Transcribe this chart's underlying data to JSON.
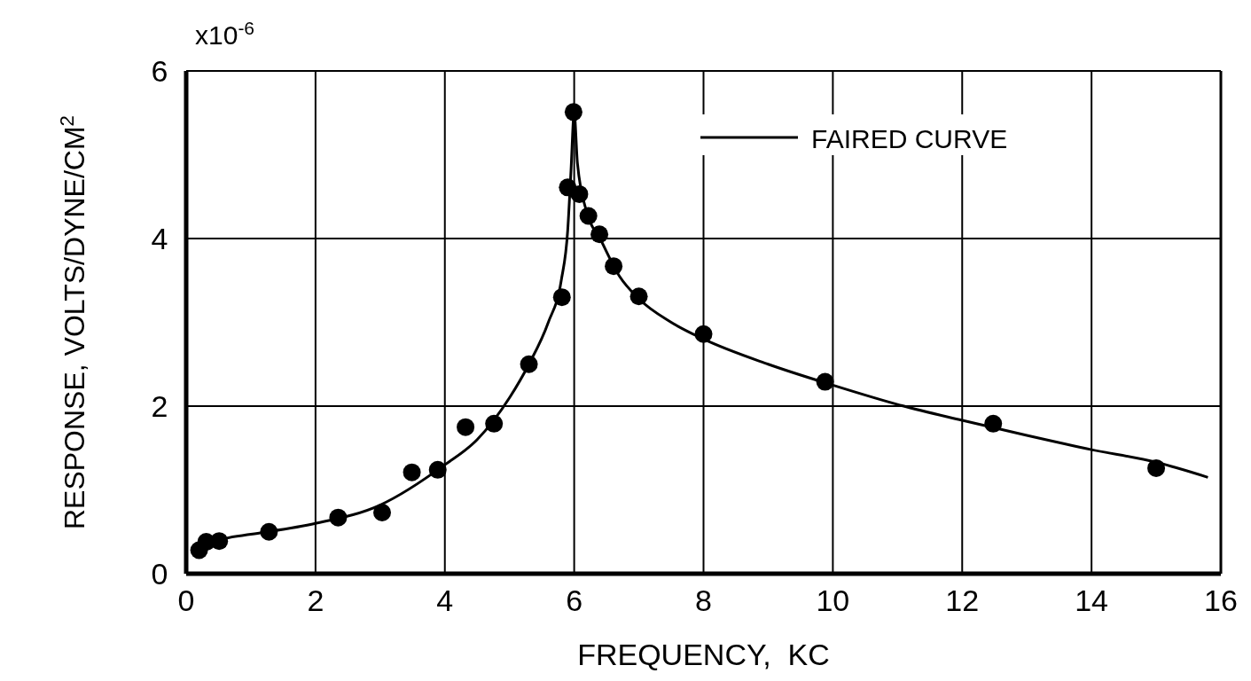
{
  "chart_data": {
    "type": "scatter",
    "xlabel": "FREQUENCY,  KC",
    "ylabel": "RESPONSE, VOLTS/DYNE/CM$^{2}$",
    "annotations": [
      "x10$^{-6}$"
    ],
    "xlim": [
      0,
      16
    ],
    "xticks": [
      0,
      2,
      4,
      6,
      8,
      10,
      12,
      14,
      16
    ],
    "ylim": [
      0,
      6
    ],
    "yticks": [
      0,
      2,
      4,
      6
    ],
    "grid": true,
    "legend": "top right",
    "series": [
      {
        "color": "#000000",
        "marker": "circle",
        "x": [
          0.2,
          0.31,
          0.51,
          1.28,
          2.35,
          3.03,
          3.49,
          3.89,
          4.32,
          4.76,
          5.3,
          5.81,
          5.9,
          5.99,
          6.08,
          6.22,
          6.39,
          6.61,
          7.0,
          8.0,
          9.88,
          12.48,
          15.0
        ],
        "values": [
          0.28,
          0.38,
          0.39,
          0.5,
          0.67,
          0.73,
          1.21,
          1.24,
          1.75,
          1.79,
          2.5,
          3.3,
          4.61,
          5.51,
          4.53,
          4.27,
          4.05,
          3.67,
          3.31,
          2.86,
          2.29,
          1.79,
          1.26
        ]
      },
      {
        "type": "line",
        "name": "FAIRED CURVE",
        "color": "#000000",
        "line_style": "solid",
        "marker": "none",
        "x": [
          0.2,
          0.6,
          1,
          2,
          3,
          4,
          4.5,
          5,
          5.3,
          5.6,
          5.8,
          5.9,
          5.95,
          6.0,
          6.05,
          6.2,
          6.4,
          6.7,
          7,
          7.5,
          8,
          9,
          10,
          11,
          12,
          13,
          14,
          15,
          15.8
        ],
        "values": [
          0.3,
          0.42,
          0.47,
          0.6,
          0.82,
          1.3,
          1.6,
          2.1,
          2.5,
          3.0,
          3.5,
          4.1,
          4.8,
          5.5,
          4.9,
          4.3,
          4.0,
          3.55,
          3.28,
          3.0,
          2.8,
          2.5,
          2.25,
          2.02,
          1.83,
          1.65,
          1.48,
          1.33,
          1.15
        ]
      }
    ]
  }
}
